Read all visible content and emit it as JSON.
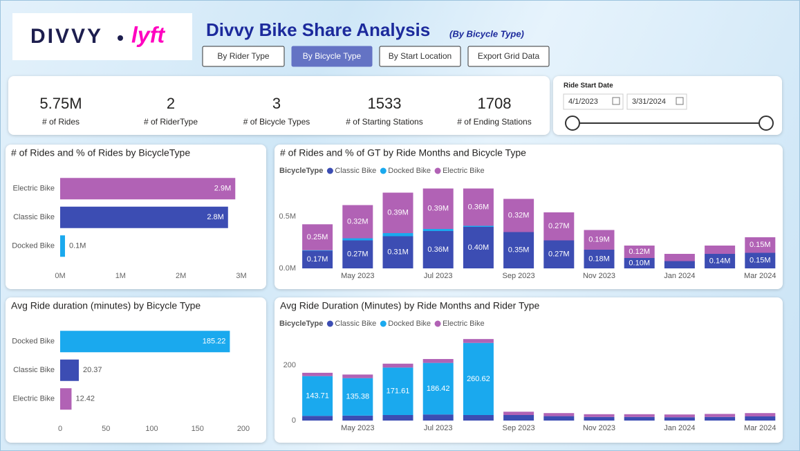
{
  "header": {
    "logo_left": "DIVVY",
    "logo_right": "lyft",
    "title": "Divvy Bike Share Analysis",
    "subtitle": "(By Bicycle Type)"
  },
  "buttons": [
    {
      "label": "By Rider Type",
      "active": false
    },
    {
      "label": "By Bicycle Type",
      "active": true
    },
    {
      "label": "By Start Location",
      "active": false
    },
    {
      "label": "Export Grid Data",
      "active": false
    }
  ],
  "kpis": [
    {
      "value": "5.75M",
      "label": "# of Rides"
    },
    {
      "value": "2",
      "label": "# of RiderType"
    },
    {
      "value": "3",
      "label": "# of Bicycle Types"
    },
    {
      "value": "1533",
      "label": "# of Starting Stations"
    },
    {
      "value": "1708",
      "label": "# of Ending Stations"
    }
  ],
  "date_filter": {
    "label": "Ride Start Date",
    "start": "4/1/2023",
    "end": "3/31/2024"
  },
  "chart_data": [
    {
      "type": "barh",
      "title": "# of Rides and % of Rides by BicycleType",
      "categories": [
        "Electric Bike",
        "Classic Bike",
        "Docked Bike"
      ],
      "values": [
        2900000,
        2780000,
        80000
      ],
      "value_labels": [
        "2.9M",
        "2.8M",
        "0.1M"
      ],
      "colors": [
        "#b162b5",
        "#3c4db3",
        "#1aa9ee"
      ],
      "xlim": [
        0,
        3000000
      ],
      "xticks": [
        {
          "value": 0,
          "label": "0M"
        },
        {
          "value": 1000000,
          "label": "1M"
        },
        {
          "value": 2000000,
          "label": "2M"
        },
        {
          "value": 3000000,
          "label": "3M"
        }
      ]
    },
    {
      "type": "stacked",
      "title": "# of Rides and % of GT by Ride Months and Bicycle Type",
      "legend_title": "BicycleType",
      "categories": [
        null,
        "May 2023",
        null,
        "Jul 2023",
        null,
        "Sep 2023",
        null,
        "Nov 2023",
        null,
        "Jan 2024",
        null,
        "Mar 2024"
      ],
      "series": [
        {
          "name": "Classic Bike",
          "color": "#3c4db3",
          "values": [
            170000,
            270000,
            310000,
            360000,
            400000,
            350000,
            270000,
            180000,
            100000,
            70000,
            140000,
            150000
          ],
          "value_labels": [
            "0.17M",
            "0.27M",
            "0.31M",
            "0.36M",
            "0.40M",
            "0.35M",
            "0.27M",
            "0.18M",
            "0.10M",
            null,
            "0.14M",
            "0.15M"
          ]
        },
        {
          "name": "Docked Bike",
          "color": "#1aa9ee",
          "values": [
            5000,
            20000,
            30000,
            20000,
            10000,
            0,
            0,
            0,
            0,
            0,
            0,
            0
          ]
        },
        {
          "name": "Electric Bike",
          "color": "#b162b5",
          "values": [
            250000,
            320000,
            390000,
            390000,
            360000,
            320000,
            270000,
            190000,
            120000,
            70000,
            80000,
            150000
          ],
          "value_labels": [
            "0.25M",
            "0.32M",
            "0.39M",
            "0.39M",
            "0.36M",
            "0.32M",
            "0.27M",
            "0.19M",
            "0.12M",
            null,
            null,
            "0.15M"
          ]
        }
      ],
      "ylim": [
        0,
        800000
      ],
      "yticks": [
        {
          "value": 0,
          "label": "0.0M"
        },
        {
          "value": 500000,
          "label": "0.5M"
        }
      ]
    },
    {
      "type": "barh",
      "title": "Avg Ride duration (minutes) by Bicycle Type",
      "categories": [
        "Docked Bike",
        "Classic Bike",
        "Electric Bike"
      ],
      "values": [
        185.22,
        20.37,
        12.42
      ],
      "colors": [
        "#1aa9ee",
        "#3c4db3",
        "#b162b5"
      ],
      "xlim": [
        0,
        200
      ],
      "xticks": [
        0,
        50,
        100,
        150,
        200
      ]
    },
    {
      "type": "stacked",
      "title": "Avg Ride Duration (Minutes) by Ride Months and Rider Type",
      "legend_title": "BicycleType",
      "categories": [
        null,
        "May 2023",
        null,
        "Jul 2023",
        null,
        "Sep 2023",
        null,
        "Nov 2023",
        null,
        "Jan 2024",
        null,
        "Mar 2024"
      ],
      "series": [
        {
          "name": "Classic Bike",
          "color": "#3c4db3",
          "values": [
            17,
            18,
            20,
            22,
            20,
            20,
            16,
            13,
            13,
            12,
            13,
            15
          ]
        },
        {
          "name": "Docked Bike",
          "color": "#1aa9ee",
          "show_labels": true,
          "values": [
            143.71,
            135.38,
            171.61,
            186.42,
            260.62,
            0,
            0,
            0,
            0,
            0,
            0,
            0
          ]
        },
        {
          "name": "Electric Bike",
          "color": "#b162b5",
          "values": [
            12,
            13,
            14,
            14,
            14,
            12,
            11,
            10,
            10,
            10,
            11,
            12
          ]
        }
      ],
      "ylim": [
        0,
        300
      ],
      "yticks": [
        0,
        200
      ]
    }
  ]
}
